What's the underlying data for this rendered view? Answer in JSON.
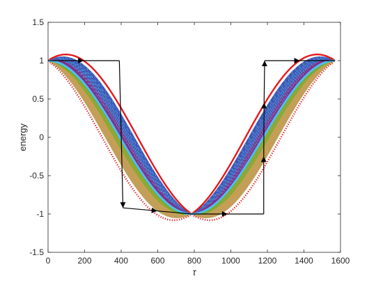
{
  "chart_data": {
    "type": "line",
    "title": "",
    "xlabel": "τ",
    "ylabel": "energy",
    "xlim": [
      0,
      1600
    ],
    "ylim": [
      -1.5,
      1.5
    ],
    "xticks": [
      0,
      200,
      400,
      600,
      800,
      1000,
      1200,
      1400,
      1600
    ],
    "yticks": [
      -1.5,
      -1,
      -0.5,
      0,
      0.5,
      1,
      1.5
    ],
    "xtick_labels": [
      "0",
      "200",
      "400",
      "600",
      "800",
      "1000",
      "1200",
      "1400",
      "1600"
    ],
    "ytick_labels": [
      "-1.5",
      "-1",
      "-0.5",
      "0",
      "0.5",
      "1",
      "1.5"
    ],
    "grid": false,
    "legend": false,
    "period": 1570,
    "series": [
      {
        "role": "envelope-upper",
        "style": "solid",
        "color": "#e5191b",
        "x": [
          0,
          200,
          393,
          590,
          785,
          985,
          1180,
          1375,
          1570
        ],
        "y": [
          1.0,
          1.41,
          0.85,
          -0.6,
          -1.0,
          -0.6,
          0.85,
          1.41,
          1.0
        ]
      },
      {
        "role": "envelope-lower",
        "style": "dotted",
        "color": "#e5191b",
        "x": [
          0,
          200,
          393,
          590,
          785,
          985,
          1180,
          1375,
          1570
        ],
        "y": [
          1.0,
          0.6,
          -0.85,
          -1.41,
          -1.0,
          -1.41,
          -0.85,
          0.6,
          1.0
        ]
      },
      {
        "role": "mean",
        "style": "solid",
        "color": "#4dbeee",
        "x": [
          0,
          196,
          393,
          589,
          785,
          981,
          1178,
          1374,
          1570
        ],
        "y": [
          1.0,
          0.71,
          0.0,
          -0.71,
          -1.0,
          -0.71,
          0.0,
          0.71,
          1.0
        ]
      }
    ],
    "fill_bands": [
      {
        "name": "upper-band",
        "color": "#3f57b5"
      },
      {
        "name": "inner-band",
        "color": "#7e2f8e"
      },
      {
        "name": "lower-band",
        "color": "#77ac30"
      },
      {
        "name": "outer-band",
        "color": "#bda05a"
      }
    ],
    "arrow_path": {
      "color": "#000000",
      "points": [
        [
          0,
          1.0
        ],
        [
          390,
          1.0
        ],
        [
          410,
          -0.92
        ],
        [
          785,
          -1.0
        ],
        [
          1180,
          -1.0
        ],
        [
          1180,
          -0.25
        ],
        [
          1182,
          0.45
        ],
        [
          1185,
          1.0
        ],
        [
          1570,
          1.0
        ]
      ]
    }
  }
}
